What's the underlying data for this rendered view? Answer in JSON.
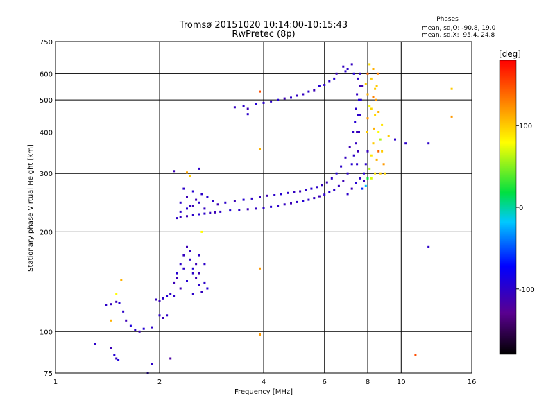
{
  "chart_data": {
    "type": "scatter",
    "title": "Tromsø 20151020 10:14:00-10:15:43",
    "subtitle": "RwPretec (8p)",
    "xlabel": "Frequency [MHz]",
    "ylabel": "Stationary phase Virtual Height [km]",
    "x_scale": "log2",
    "y_scale": "log",
    "xlim": [
      1,
      16
    ],
    "ylim": [
      75,
      750
    ],
    "x_ticks": [
      {
        "value": 1,
        "label": "1"
      },
      {
        "value": 2,
        "label": "2"
      },
      {
        "value": 4,
        "label": "4"
      },
      {
        "value": 6,
        "label": "6"
      },
      {
        "value": 8,
        "label": "8"
      },
      {
        "value": 10,
        "label": "10"
      },
      {
        "value": 16,
        "label": "16"
      }
    ],
    "y_ticks": [
      {
        "value": 75,
        "label": "75"
      },
      {
        "value": 100,
        "label": "100"
      },
      {
        "value": 200,
        "label": "200"
      },
      {
        "value": 300,
        "label": "300"
      },
      {
        "value": 400,
        "label": "400"
      },
      {
        "value": 500,
        "label": "500"
      },
      {
        "value": 600,
        "label": "600"
      },
      {
        "value": 750,
        "label": "750"
      }
    ],
    "grid": true,
    "stats": {
      "heading": "Phases",
      "line_o": "mean, sd,O: -90.8, 19.0",
      "line_x": "mean, sd,X:  95.4, 24.8"
    },
    "colorbar": {
      "label": "[deg]",
      "range": [
        -180,
        180
      ],
      "ticks": [
        {
          "value": 100,
          "label": "100"
        },
        {
          "value": 0,
          "label": "0"
        },
        {
          "value": -100,
          "label": "-100"
        }
      ],
      "colors": [
        "#000000",
        "#5a0090",
        "#0000ff",
        "#00c8ff",
        "#00e040",
        "#ffff00",
        "#ff8000",
        "#ff0000"
      ]
    },
    "series": [
      {
        "points": [
          [
            1.3,
            92,
            -100
          ],
          [
            1.45,
            89,
            -110
          ],
          [
            1.48,
            85,
            -95
          ],
          [
            1.5,
            83,
            -105
          ],
          [
            1.52,
            82,
            -90
          ],
          [
            1.4,
            120,
            -100
          ],
          [
            1.45,
            121,
            -105
          ],
          [
            1.5,
            123,
            -110
          ],
          [
            1.53,
            122,
            -95
          ],
          [
            1.57,
            115,
            -100
          ],
          [
            1.6,
            108,
            -110
          ],
          [
            1.65,
            104,
            -90
          ],
          [
            1.7,
            101,
            -100
          ],
          [
            1.75,
            100,
            -110
          ],
          [
            1.8,
            102,
            -95
          ],
          [
            1.9,
            103,
            -100
          ],
          [
            1.95,
            125,
            -105
          ],
          [
            2.0,
            124,
            -110
          ],
          [
            2.05,
            126,
            -100
          ],
          [
            2.1,
            128,
            -95
          ],
          [
            2.0,
            112,
            -100
          ],
          [
            2.05,
            110,
            -110
          ],
          [
            2.1,
            112,
            -100
          ],
          [
            2.15,
            130,
            -100
          ],
          [
            2.2,
            140,
            -110
          ],
          [
            2.25,
            150,
            -95
          ],
          [
            2.3,
            160,
            -100
          ],
          [
            2.35,
            170,
            -105
          ],
          [
            2.4,
            180,
            -110
          ],
          [
            2.45,
            165,
            -100
          ],
          [
            2.5,
            155,
            -95
          ],
          [
            2.55,
            145,
            -110
          ],
          [
            2.6,
            138,
            -100
          ],
          [
            2.65,
            132,
            -105
          ],
          [
            2.2,
            128,
            -100
          ],
          [
            2.3,
            135,
            -110
          ],
          [
            2.4,
            142,
            -95
          ],
          [
            2.5,
            150,
            -100
          ],
          [
            2.55,
            160,
            -110
          ],
          [
            2.6,
            170,
            -100
          ],
          [
            2.45,
            175,
            -105
          ],
          [
            2.35,
            155,
            -100
          ],
          [
            2.25,
            145,
            -110
          ],
          [
            2.7,
            140,
            -100
          ],
          [
            2.75,
            135,
            -95
          ],
          [
            2.5,
            130,
            -100
          ],
          [
            2.6,
            150,
            -110
          ],
          [
            2.7,
            160,
            -100
          ],
          [
            2.25,
            220,
            -100
          ],
          [
            2.3,
            222,
            -105
          ],
          [
            2.4,
            223,
            -110
          ],
          [
            2.5,
            225,
            -100
          ],
          [
            2.6,
            226,
            -95
          ],
          [
            2.7,
            227,
            -100
          ],
          [
            2.8,
            228,
            -105
          ],
          [
            2.9,
            229,
            -110
          ],
          [
            3.0,
            230,
            -100
          ],
          [
            3.2,
            232,
            -95
          ],
          [
            3.4,
            233,
            -100
          ],
          [
            3.6,
            234,
            -110
          ],
          [
            3.8,
            235,
            -105
          ],
          [
            4.0,
            236,
            -100
          ],
          [
            4.2,
            238,
            -95
          ],
          [
            4.4,
            240,
            -100
          ],
          [
            4.6,
            242,
            -105
          ],
          [
            4.8,
            244,
            -110
          ],
          [
            5.0,
            246,
            -100
          ],
          [
            5.2,
            248,
            -95
          ],
          [
            5.4,
            250,
            -100
          ],
          [
            5.6,
            253,
            -105
          ],
          [
            5.8,
            256,
            -110
          ],
          [
            6.0,
            259,
            -100
          ],
          [
            6.2,
            263,
            -95
          ],
          [
            6.4,
            268,
            -100
          ],
          [
            6.6,
            275,
            -105
          ],
          [
            6.8,
            285,
            -110
          ],
          [
            7.0,
            300,
            -100
          ],
          [
            7.2,
            320,
            -95
          ],
          [
            7.3,
            340,
            -100
          ],
          [
            7.4,
            370,
            -105
          ],
          [
            7.45,
            400,
            -110
          ],
          [
            7.5,
            450,
            -100
          ],
          [
            7.55,
            500,
            -95
          ],
          [
            2.3,
            245,
            -100
          ],
          [
            2.4,
            255,
            -110
          ],
          [
            2.5,
            265,
            -95
          ],
          [
            2.35,
            270,
            -100
          ],
          [
            2.45,
            240,
            -105
          ],
          [
            2.55,
            250,
            -110
          ],
          [
            2.65,
            260,
            -100
          ],
          [
            2.75,
            255,
            -95
          ],
          [
            2.85,
            248,
            -100
          ],
          [
            2.95,
            242,
            -110
          ],
          [
            2.3,
            230,
            -100
          ],
          [
            2.4,
            235,
            -95
          ],
          [
            2.5,
            240,
            -110
          ],
          [
            2.6,
            245,
            -100
          ],
          [
            2.7,
            235,
            -105
          ],
          [
            3.1,
            245,
            -100
          ],
          [
            3.3,
            248,
            -110
          ],
          [
            3.5,
            250,
            -95
          ],
          [
            3.7,
            252,
            -100
          ],
          [
            3.9,
            255,
            -105
          ],
          [
            4.1,
            257,
            -110
          ],
          [
            4.3,
            258,
            -100
          ],
          [
            4.5,
            260,
            -95
          ],
          [
            4.7,
            262,
            -100
          ],
          [
            4.9,
            263,
            -105
          ],
          [
            5.1,
            265,
            -110
          ],
          [
            5.3,
            267,
            -100
          ],
          [
            5.5,
            270,
            -95
          ],
          [
            5.7,
            273,
            -100
          ],
          [
            5.9,
            277,
            -105
          ],
          [
            6.1,
            282,
            -110
          ],
          [
            6.3,
            290,
            -100
          ],
          [
            6.5,
            300,
            -95
          ],
          [
            6.7,
            315,
            -100
          ],
          [
            6.9,
            335,
            -105
          ],
          [
            7.1,
            360,
            -110
          ],
          [
            7.25,
            400,
            -100
          ],
          [
            7.35,
            430,
            -95
          ],
          [
            7.4,
            470,
            -100
          ],
          [
            7.45,
            520,
            -105
          ],
          [
            7.6,
            550,
            -110
          ],
          [
            7.5,
            580,
            -100
          ],
          [
            7.3,
            600,
            -95
          ],
          [
            7.0,
            620,
            -100
          ],
          [
            6.8,
            630,
            -105
          ],
          [
            6.5,
            600,
            -110
          ],
          [
            6.2,
            570,
            -100
          ],
          [
            5.8,
            550,
            -95
          ],
          [
            5.4,
            530,
            -100
          ],
          [
            5.0,
            515,
            -105
          ],
          [
            4.6,
            505,
            -110
          ],
          [
            4.2,
            495,
            -100
          ],
          [
            3.8,
            485,
            -95
          ],
          [
            3.5,
            480,
            -100
          ],
          [
            3.3,
            475,
            -105
          ],
          [
            3.6,
            470,
            -110
          ],
          [
            4.0,
            490,
            -100
          ],
          [
            4.4,
            500,
            -95
          ],
          [
            4.8,
            508,
            -100
          ],
          [
            5.2,
            520,
            -105
          ],
          [
            5.6,
            535,
            -110
          ],
          [
            6.0,
            555,
            -100
          ],
          [
            6.4,
            580,
            -95
          ],
          [
            6.9,
            610,
            -100
          ],
          [
            7.2,
            640,
            -105
          ],
          [
            7.6,
            600,
            -100
          ],
          [
            7.7,
            550,
            -110
          ],
          [
            7.65,
            500,
            -95
          ],
          [
            7.6,
            450,
            -100
          ],
          [
            7.55,
            400,
            -105
          ],
          [
            7.5,
            350,
            -110
          ],
          [
            7.45,
            320,
            -100
          ],
          [
            7.8,
            300,
            -95
          ],
          [
            7.9,
            320,
            -100
          ],
          [
            8.0,
            350,
            -105
          ],
          [
            7.0,
            260,
            -100
          ],
          [
            7.2,
            270,
            -110
          ],
          [
            7.4,
            280,
            -95
          ],
          [
            7.6,
            290,
            -100
          ],
          [
            7.8,
            285,
            -105
          ],
          [
            7.7,
            270,
            -60
          ],
          [
            7.9,
            275,
            -20
          ],
          [
            8.0,
            290,
            20
          ],
          [
            8.1,
            310,
            60
          ],
          [
            8.2,
            340,
            90
          ],
          [
            8.3,
            370,
            100
          ],
          [
            8.35,
            410,
            110
          ],
          [
            8.4,
            450,
            95
          ],
          [
            8.45,
            500,
            120
          ],
          [
            8.5,
            550,
            100
          ],
          [
            8.55,
            600,
            130
          ],
          [
            8.3,
            620,
            110
          ],
          [
            8.1,
            640,
            90
          ],
          [
            8.0,
            600,
            140
          ],
          [
            8.2,
            580,
            100
          ],
          [
            8.6,
            400,
            80
          ],
          [
            8.7,
            380,
            60
          ],
          [
            8.8,
            350,
            100
          ],
          [
            8.9,
            320,
            120
          ],
          [
            9.0,
            300,
            95
          ],
          [
            8.5,
            330,
            110
          ],
          [
            8.6,
            350,
            140
          ],
          [
            8.7,
            300,
            100
          ],
          [
            8.4,
            300,
            90
          ],
          [
            8.2,
            290,
            70
          ],
          [
            7.9,
            560,
            100
          ],
          [
            8.0,
            520,
            110
          ],
          [
            8.1,
            480,
            80
          ],
          [
            8.0,
            440,
            120
          ],
          [
            7.95,
            400,
            100
          ],
          [
            8.2,
            470,
            95
          ],
          [
            8.3,
            510,
            130
          ],
          [
            8.4,
            540,
            100
          ],
          [
            8.6,
            460,
            110
          ],
          [
            8.8,
            420,
            90
          ],
          [
            9.2,
            390,
            100
          ],
          [
            9.6,
            380,
            -100
          ],
          [
            10.3,
            370,
            -100
          ],
          [
            12.0,
            370,
            -100
          ],
          [
            12.0,
            180,
            -100
          ],
          [
            14.0,
            540,
            100
          ],
          [
            14.0,
            445,
            120
          ],
          [
            11.0,
            85,
            150
          ],
          [
            3.9,
            530,
            150
          ],
          [
            3.9,
            155,
            120
          ],
          [
            3.9,
            98,
            120
          ],
          [
            2.15,
            83,
            -120
          ],
          [
            1.9,
            80,
            -100
          ],
          [
            1.85,
            75,
            -100
          ],
          [
            1.5,
            130,
            80
          ],
          [
            1.55,
            143,
            110
          ],
          [
            1.45,
            108,
            110
          ],
          [
            3.9,
            355,
            110
          ],
          [
            2.4,
            302,
            115
          ],
          [
            2.65,
            200,
            80
          ],
          [
            2.6,
            310,
            -100
          ],
          [
            2.2,
            305,
            -110
          ],
          [
            2.45,
            295,
            100
          ],
          [
            3.6,
            453,
            -100
          ]
        ]
      }
    ]
  }
}
